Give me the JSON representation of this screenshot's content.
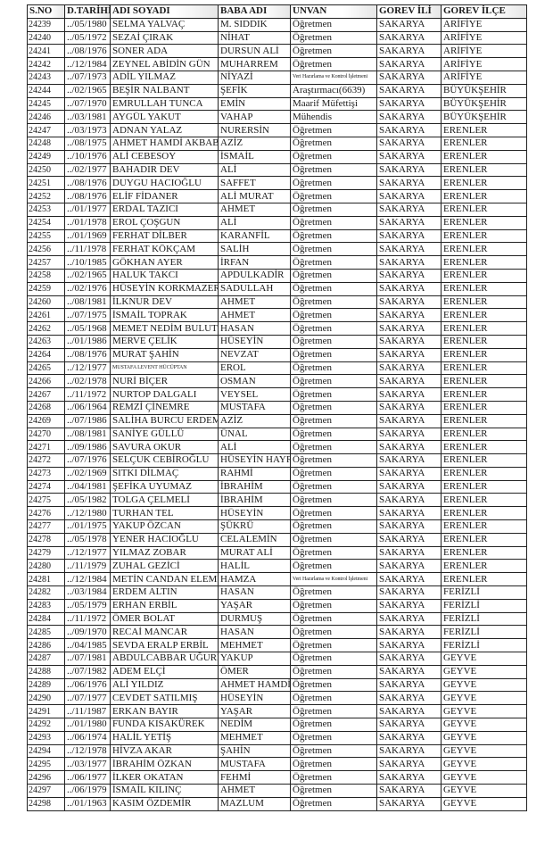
{
  "headers": [
    "S.NO",
    "D.TARİHİ",
    "ADI SOYADI",
    "BABA ADI",
    "UNVAN",
    "GOREV İLİ",
    "GOREV İLÇE"
  ],
  "rows": [
    [
      "24239",
      "../05/1980",
      "SELMA YALVAÇ",
      "M. SIDDIK",
      "Öğretmen",
      "SAKARYA",
      "ARİFİYE"
    ],
    [
      "24240",
      "../05/1972",
      "SEZAİ ÇIRAK",
      "NİHAT",
      "Öğretmen",
      "SAKARYA",
      "ARİFİYE"
    ],
    [
      "24241",
      "../08/1976",
      "SONER ADA",
      "DURSUN ALİ",
      "Öğretmen",
      "SAKARYA",
      "ARİFİYE"
    ],
    [
      "24242",
      "../12/1984",
      "ZEYNEL ABİDİN GÜN",
      "MUHARREM",
      "Öğretmen",
      "SAKARYA",
      "ARİFİYE"
    ],
    [
      "24243",
      "../07/1973",
      "ADİL YILMAZ",
      "NİYAZİ",
      "Veri Hazırlama ve Kontrol İşletmeni",
      "SAKARYA",
      "ARİFİYE"
    ],
    [
      "24244",
      "../02/1965",
      "BEŞİR NALBANT",
      "ŞEFİK",
      "Araştırmacı(6639)",
      "SAKARYA",
      "BÜYÜKŞEHİR"
    ],
    [
      "24245",
      "../07/1970",
      "EMRULLAH TUNCA",
      "EMİN",
      "Maarif Müfettişi",
      "SAKARYA",
      "BÜYÜKŞEHİR"
    ],
    [
      "24246",
      "../03/1981",
      "AYGÜL YAKUT",
      "VAHAP",
      "Mühendis",
      "SAKARYA",
      "BÜYÜKŞEHİR"
    ],
    [
      "24247",
      "../03/1973",
      "ADNAN YALAZ",
      "NURERSİN",
      "Öğretmen",
      "SAKARYA",
      "ERENLER"
    ],
    [
      "24248",
      "../08/1975",
      "AHMET HAMDİ AKBABA",
      "AZİZ",
      "Öğretmen",
      "SAKARYA",
      "ERENLER"
    ],
    [
      "24249",
      "../10/1976",
      "ALİ CEBESOY",
      "İSMAİL",
      "Öğretmen",
      "SAKARYA",
      "ERENLER"
    ],
    [
      "24250",
      "../02/1977",
      "BAHADIR DEV",
      "ALİ",
      "Öğretmen",
      "SAKARYA",
      "ERENLER"
    ],
    [
      "24251",
      "../08/1976",
      "DUYGU HACIOĞLU",
      "SAFFET",
      "Öğretmen",
      "SAKARYA",
      "ERENLER"
    ],
    [
      "24252",
      "../08/1976",
      "ELİF FİDANER",
      "ALİ MURAT",
      "Öğretmen",
      "SAKARYA",
      "ERENLER"
    ],
    [
      "24253",
      "../01/1977",
      "ERDAL TAZICI",
      "AHMET",
      "Öğretmen",
      "SAKARYA",
      "ERENLER"
    ],
    [
      "24254",
      "../01/1978",
      "EROL ÇOŞGUN",
      "ALİ",
      "Öğretmen",
      "SAKARYA",
      "ERENLER"
    ],
    [
      "24255",
      "../01/1969",
      "FERHAT DİLBER",
      "KARANFİL",
      "Öğretmen",
      "SAKARYA",
      "ERENLER"
    ],
    [
      "24256",
      "../11/1978",
      "FERHAT KÖKÇAM",
      "SALİH",
      "Öğretmen",
      "SAKARYA",
      "ERENLER"
    ],
    [
      "24257",
      "../10/1985",
      "GÖKHAN AYER",
      "İRFAN",
      "Öğretmen",
      "SAKARYA",
      "ERENLER"
    ],
    [
      "24258",
      "../02/1965",
      "HALUK TAKCI",
      "APDULKADİR",
      "Öğretmen",
      "SAKARYA",
      "ERENLER"
    ],
    [
      "24259",
      "../02/1976",
      "HÜSEYİN KORKMAZER",
      "SADULLAH",
      "Öğretmen",
      "SAKARYA",
      "ERENLER"
    ],
    [
      "24260",
      "../08/1981",
      "İLKNUR DEV",
      "AHMET",
      "Öğretmen",
      "SAKARYA",
      "ERENLER"
    ],
    [
      "24261",
      "../07/1975",
      "İSMAİL TOPRAK",
      "AHMET",
      "Öğretmen",
      "SAKARYA",
      "ERENLER"
    ],
    [
      "24262",
      "../05/1968",
      "MEMET NEDİM BULUT",
      "HASAN",
      "Öğretmen",
      "SAKARYA",
      "ERENLER"
    ],
    [
      "24263",
      "../01/1986",
      "MERVE ÇELİK",
      "HÜSEYİN",
      "Öğretmen",
      "SAKARYA",
      "ERENLER"
    ],
    [
      "24264",
      "../08/1976",
      "MURAT ŞAHİN",
      "NEVZAT",
      "Öğretmen",
      "SAKARYA",
      "ERENLER"
    ],
    [
      "24265",
      "../12/1977",
      "MUSTAFA LEVENT HÜCÜPTAN",
      "EROL",
      "Öğretmen",
      "SAKARYA",
      "ERENLER"
    ],
    [
      "24266",
      "../02/1978",
      "NURİ BİÇER",
      "OSMAN",
      "Öğretmen",
      "SAKARYA",
      "ERENLER"
    ],
    [
      "24267",
      "../11/1972",
      "NURTOP DALGALI",
      "VEYSEL",
      "Öğretmen",
      "SAKARYA",
      "ERENLER"
    ],
    [
      "24268",
      "../06/1964",
      "REMZİ ÇİNEMRE",
      "MUSTAFA",
      "Öğretmen",
      "SAKARYA",
      "ERENLER"
    ],
    [
      "24269",
      "../07/1986",
      "SALİHA BURCU ERDEM",
      "AZİZ",
      "Öğretmen",
      "SAKARYA",
      "ERENLER"
    ],
    [
      "24270",
      "../08/1981",
      "SANİYE GÜLLÜ",
      "ÜNAL",
      "Öğretmen",
      "SAKARYA",
      "ERENLER"
    ],
    [
      "24271",
      "../09/1986",
      "SAVURA OKUR",
      "ALİ",
      "Öğretmen",
      "SAKARYA",
      "ERENLER"
    ],
    [
      "24272",
      "../07/1976",
      "SELÇUK CEBİROĞLU",
      "HÜSEYİN HAYRİ",
      "Öğretmen",
      "SAKARYA",
      "ERENLER"
    ],
    [
      "24273",
      "../02/1969",
      "SITKI DİLMAÇ",
      "RAHMİ",
      "Öğretmen",
      "SAKARYA",
      "ERENLER"
    ],
    [
      "24274",
      "../04/1981",
      "ŞEFİKA UYUMAZ",
      "İBRAHİM",
      "Öğretmen",
      "SAKARYA",
      "ERENLER"
    ],
    [
      "24275",
      "../05/1982",
      "TOLGA ÇELMELİ",
      "İBRAHİM",
      "Öğretmen",
      "SAKARYA",
      "ERENLER"
    ],
    [
      "24276",
      "../12/1980",
      "TURHAN TEL",
      "HÜSEYİN",
      "Öğretmen",
      "SAKARYA",
      "ERENLER"
    ],
    [
      "24277",
      "../01/1975",
      "YAKUP ÖZCAN",
      "ŞÜKRÜ",
      "Öğretmen",
      "SAKARYA",
      "ERENLER"
    ],
    [
      "24278",
      "../05/1978",
      "YENER HACIOĞLU",
      "CELALEMİN",
      "Öğretmen",
      "SAKARYA",
      "ERENLER"
    ],
    [
      "24279",
      "../12/1977",
      "YILMAZ ZOBAR",
      "MURAT ALİ",
      "Öğretmen",
      "SAKARYA",
      "ERENLER"
    ],
    [
      "24280",
      "../11/1979",
      "ZUHAL GEZİCİ",
      "HALİL",
      "Öğretmen",
      "SAKARYA",
      "ERENLER"
    ],
    [
      "24281",
      "../12/1984",
      "METİN CANDAN ELEMEN",
      "HAMZA",
      "Veri Hazırlama ve Kontrol İşletmeni",
      "SAKARYA",
      "ERENLER"
    ],
    [
      "24282",
      "../03/1984",
      "ERDEM ALTIN",
      "HASAN",
      "Öğretmen",
      "SAKARYA",
      "FERİZLİ"
    ],
    [
      "24283",
      "../05/1979",
      "ERHAN ERBİL",
      "YAŞAR",
      "Öğretmen",
      "SAKARYA",
      "FERİZLİ"
    ],
    [
      "24284",
      "../11/1972",
      "ÖMER BOLAT",
      "DURMUŞ",
      "Öğretmen",
      "SAKARYA",
      "FERİZLİ"
    ],
    [
      "24285",
      "../09/1970",
      "RECAİ MANCAR",
      "HASAN",
      "Öğretmen",
      "SAKARYA",
      "FERİZLİ"
    ],
    [
      "24286",
      "../04/1985",
      "SEVDA ERALP ERBİL",
      "MEHMET",
      "Öğretmen",
      "SAKARYA",
      "FERİZLİ"
    ],
    [
      "24287",
      "../07/1981",
      "ABDULCABBAR UĞURLU",
      "YAKUP",
      "Öğretmen",
      "SAKARYA",
      "GEYVE"
    ],
    [
      "24288",
      "../07/1982",
      "ADEM ELÇİ",
      "ÖMER",
      "Öğretmen",
      "SAKARYA",
      "GEYVE"
    ],
    [
      "24289",
      "../06/1976",
      "ALİ YILDIZ",
      "AHMET HAMDİ",
      "Öğretmen",
      "SAKARYA",
      "GEYVE"
    ],
    [
      "24290",
      "../07/1977",
      "CEVDET SATILMIŞ",
      "HÜSEYİN",
      "Öğretmen",
      "SAKARYA",
      "GEYVE"
    ],
    [
      "24291",
      "../11/1987",
      "ERKAN BAYIR",
      "YAŞAR",
      "Öğretmen",
      "SAKARYA",
      "GEYVE"
    ],
    [
      "24292",
      "../01/1980",
      "FUNDA KISAKÜREK",
      "NEDİM",
      "Öğretmen",
      "SAKARYA",
      "GEYVE"
    ],
    [
      "24293",
      "../06/1974",
      "HALİL YETİŞ",
      "MEHMET",
      "Öğretmen",
      "SAKARYA",
      "GEYVE"
    ],
    [
      "24294",
      "../12/1978",
      "HİVZA AKAR",
      "ŞAHİN",
      "Öğretmen",
      "SAKARYA",
      "GEYVE"
    ],
    [
      "24295",
      "../03/1977",
      "İBRAHİM ÖZKAN",
      "MUSTAFA",
      "Öğretmen",
      "SAKARYA",
      "GEYVE"
    ],
    [
      "24296",
      "../06/1977",
      "İLKER OKATAN",
      "FEHMİ",
      "Öğretmen",
      "SAKARYA",
      "GEYVE"
    ],
    [
      "24297",
      "../06/1979",
      "İSMAİL KILINÇ",
      "AHMET",
      "Öğretmen",
      "SAKARYA",
      "GEYVE"
    ],
    [
      "24298",
      "../01/1963",
      "KASIM ÖZDEMİR",
      "MAZLUM",
      "Öğretmen",
      "SAKARYA",
      "GEYVE"
    ]
  ]
}
